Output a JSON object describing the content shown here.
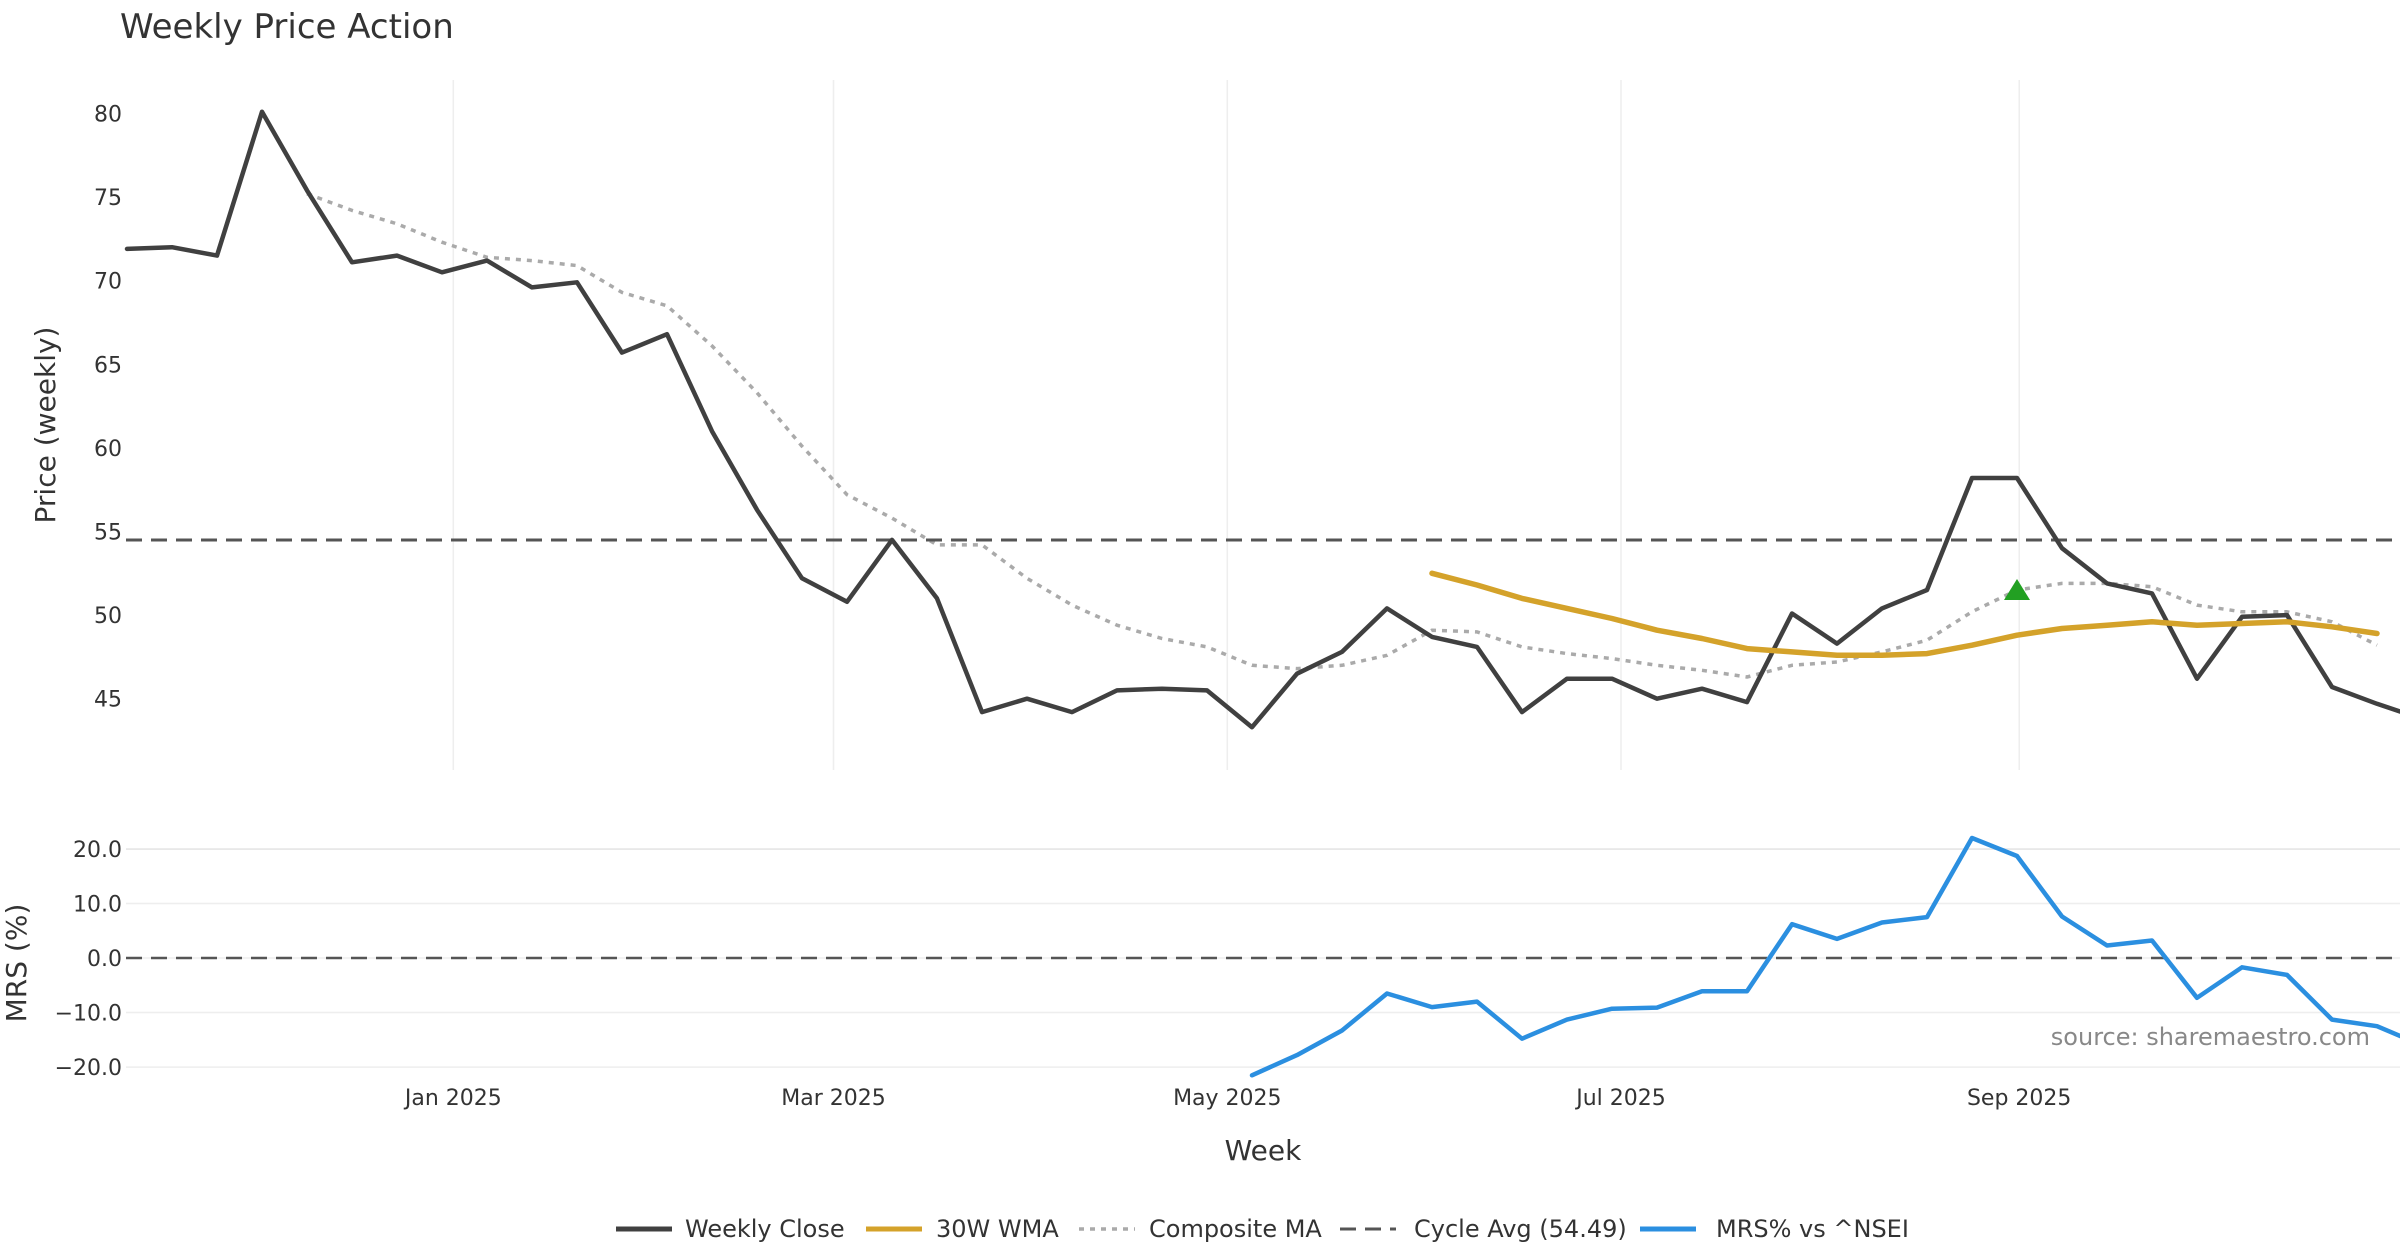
{
  "chart_data": [
    {
      "type": "line",
      "title": "Weekly Price Action",
      "ylabel": "Price (weekly)",
      "ylim": [
        40.5,
        82
      ],
      "yticks": [
        45,
        50,
        55,
        60,
        65,
        70,
        75,
        80
      ],
      "x_week_range": [
        0,
        51
      ],
      "series": [
        {
          "name": "Weekly Close",
          "color": "#404040",
          "start_week": 0,
          "values": [
            71.9,
            72.0,
            71.5,
            80.1,
            75.4,
            71.1,
            71.5,
            70.5,
            71.2,
            69.6,
            69.9,
            65.7,
            66.8,
            61.0,
            56.3,
            52.2,
            50.8,
            54.5,
            51.0,
            44.2,
            45.0,
            44.2,
            45.5,
            45.6,
            45.5,
            43.3,
            46.5,
            47.8,
            50.4,
            48.7,
            48.1,
            44.2,
            46.2,
            46.2,
            45.0,
            45.6,
            44.8,
            50.1,
            48.3,
            50.4,
            51.5,
            58.2,
            58.2,
            54.0,
            51.9,
            51.3,
            46.2,
            49.9,
            50.0,
            45.7,
            44.7,
            43.8
          ]
        },
        {
          "name": "30W WMA",
          "color": "#d4a22a",
          "start_week": 29,
          "values": [
            52.5,
            51.8,
            51.0,
            50.4,
            49.8,
            49.1,
            48.6,
            48.0,
            47.8,
            47.6,
            47.6,
            47.7,
            48.2,
            48.8,
            49.2,
            49.4,
            49.6,
            49.4,
            49.5,
            49.6,
            49.3,
            48.9
          ]
        },
        {
          "name": "Composite MA",
          "color": "#aaaaaa",
          "start_week": 4,
          "values": [
            75.2,
            74.2,
            73.4,
            72.3,
            71.4,
            71.2,
            70.9,
            69.3,
            68.5,
            66.1,
            63.3,
            60.1,
            57.2,
            55.8,
            54.2,
            54.2,
            52.2,
            50.6,
            49.4,
            48.6,
            48.1,
            47.0,
            46.8,
            47.0,
            47.6,
            49.1,
            49.0,
            48.1,
            47.7,
            47.4,
            47.0,
            46.7,
            46.3,
            47.0,
            47.2,
            47.8,
            48.5,
            50.2,
            51.5,
            51.9,
            51.9,
            51.7,
            50.6,
            50.2,
            50.2,
            49.6,
            48.2
          ]
        },
        {
          "name": "Cycle Avg (54.49)",
          "color": "#555555",
          "type": "hline",
          "value": 54.49
        }
      ],
      "annotations": [
        {
          "type": "triangle-up",
          "week": 42,
          "value": 51.5,
          "color": "#22a022"
        }
      ]
    },
    {
      "type": "line",
      "ylabel": "MRS (%)",
      "xlabel": "Week",
      "ylim": [
        -22,
        22
      ],
      "yticks": [
        "20.0",
        "10.0",
        "0.0",
        "−10.0",
        "−20.0"
      ],
      "ytick_values": [
        20,
        10,
        0,
        -10,
        -20
      ],
      "zero_line": 0,
      "series": [
        {
          "name": "MRS% vs ^NSEI",
          "color": "#2b8fe0",
          "start_week": 25,
          "values": [
            -21.5,
            -17.8,
            -13.3,
            -6.5,
            -9.0,
            -8.0,
            -14.8,
            -11.3,
            -9.3,
            -9.1,
            -6.1,
            -6.1,
            6.2,
            3.5,
            6.5,
            7.5,
            22.0,
            18.7,
            7.6,
            2.3,
            3.2,
            -7.3,
            -1.7,
            -3.1,
            -11.3,
            -12.5,
            -16.0
          ]
        }
      ],
      "xticks": [
        {
          "label": "Jan 2025",
          "week": 7.25
        },
        {
          "label": "Mar 2025",
          "week": 15.7
        },
        {
          "label": "May 2025",
          "week": 24.45
        },
        {
          "label": "Jul 2025",
          "week": 33.2
        },
        {
          "label": "Sep 2025",
          "week": 42.05
        }
      ]
    }
  ],
  "legend": [
    {
      "label": "Weekly Close",
      "color": "#404040",
      "style": "solid"
    },
    {
      "label": "30W WMA",
      "color": "#d4a22a",
      "style": "solid"
    },
    {
      "label": "Composite MA",
      "color": "#aaaaaa",
      "style": "dotted"
    },
    {
      "label": "Cycle Avg (54.49)",
      "color": "#555555",
      "style": "dashed"
    },
    {
      "label": "MRS% vs ^NSEI",
      "color": "#2b8fe0",
      "style": "solid"
    }
  ],
  "source": "source: sharemaestro.com"
}
